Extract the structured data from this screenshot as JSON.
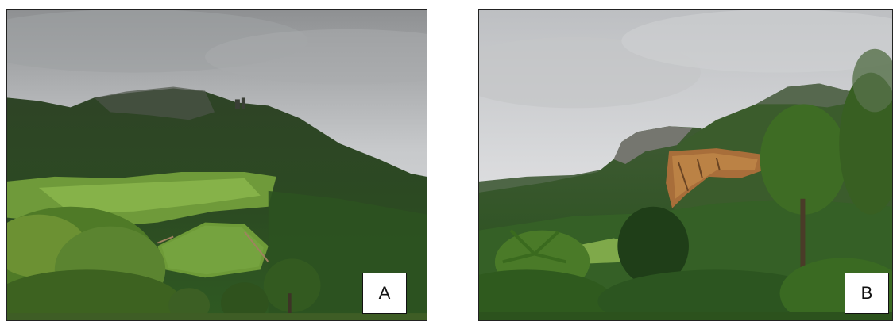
{
  "panels": [
    {
      "label": "A"
    },
    {
      "label": "B"
    }
  ]
}
